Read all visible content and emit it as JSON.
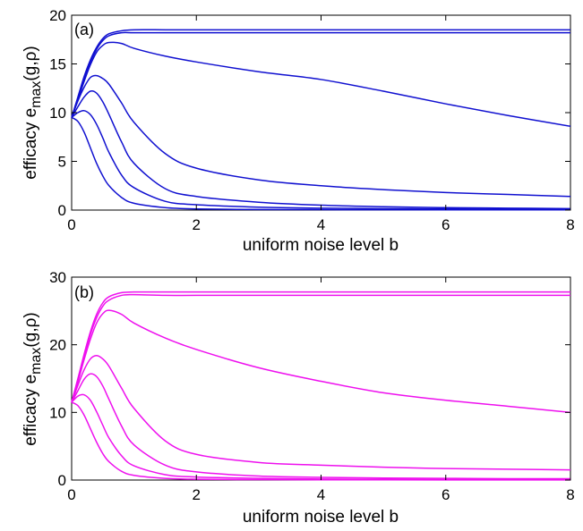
{
  "chart_data": [
    {
      "type": "line",
      "panel_label": "(a)",
      "xlabel": "uniform noise level b",
      "ylabel_main": "efficacy e",
      "ylabel_sub": "max",
      "ylabel_tail": "(g,ρ)",
      "xlim": [
        0,
        8
      ],
      "ylim": [
        0,
        20
      ],
      "xticks": [
        "0",
        "2",
        "4",
        "6",
        "8"
      ],
      "yticks": [
        "0",
        "5",
        "10",
        "15",
        "20"
      ],
      "color": "#1010d0",
      "series": [
        {
          "x": [
            0,
            0.1,
            0.2,
            0.3,
            0.4,
            0.5,
            0.6,
            0.8,
            1.0,
            1.5,
            2,
            3,
            4,
            5,
            6,
            7,
            8
          ],
          "y": [
            9.5,
            11.6,
            13.7,
            15.4,
            16.7,
            17.6,
            18.1,
            18.4,
            18.5,
            18.5,
            18.5,
            18.5,
            18.5,
            18.5,
            18.5,
            18.5,
            18.5
          ]
        },
        {
          "x": [
            0,
            0.1,
            0.2,
            0.3,
            0.4,
            0.5,
            0.6,
            0.8,
            1.0,
            1.5,
            2,
            3,
            4,
            5,
            6,
            7,
            8
          ],
          "y": [
            9.5,
            11.5,
            13.5,
            15.2,
            16.5,
            17.4,
            17.9,
            18.2,
            18.2,
            18.2,
            18.2,
            18.2,
            18.2,
            18.2,
            18.2,
            18.2,
            18.2
          ]
        },
        {
          "x": [
            0,
            0.1,
            0.2,
            0.3,
            0.4,
            0.5,
            0.6,
            0.8,
            1.0,
            1.5,
            2,
            3,
            4,
            5,
            6,
            7,
            8
          ],
          "y": [
            9.5,
            11.3,
            13.2,
            14.9,
            16.2,
            16.9,
            17.2,
            17.1,
            16.6,
            15.8,
            15.2,
            14.2,
            13.4,
            12.2,
            10.9,
            9.7,
            8.6
          ]
        },
        {
          "x": [
            0,
            0.1,
            0.2,
            0.3,
            0.4,
            0.5,
            0.6,
            0.8,
            1.0,
            1.5,
            2,
            3,
            4,
            5,
            6,
            7,
            8
          ],
          "y": [
            9.5,
            11.2,
            12.6,
            13.6,
            13.8,
            13.5,
            12.9,
            11.0,
            9.0,
            5.8,
            4.3,
            3.1,
            2.5,
            2.1,
            1.8,
            1.6,
            1.4
          ]
        },
        {
          "x": [
            0,
            0.1,
            0.2,
            0.3,
            0.4,
            0.5,
            0.6,
            0.8,
            1.0,
            1.5,
            2,
            3,
            4,
            5,
            6,
            7,
            8
          ],
          "y": [
            9.5,
            10.6,
            11.6,
            12.2,
            12.0,
            11.1,
            9.8,
            7.0,
            4.8,
            2.2,
            1.4,
            0.8,
            0.5,
            0.35,
            0.25,
            0.2,
            0.15
          ]
        },
        {
          "x": [
            0,
            0.1,
            0.2,
            0.3,
            0.4,
            0.5,
            0.6,
            0.8,
            1.0,
            1.5,
            2,
            3,
            4,
            5,
            6,
            7,
            8
          ],
          "y": [
            9.5,
            10.0,
            10.2,
            9.8,
            8.8,
            7.4,
            5.9,
            3.6,
            2.3,
            0.9,
            0.55,
            0.3,
            0.2,
            0.15,
            0.12,
            0.1,
            0.08
          ]
        },
        {
          "x": [
            0,
            0.1,
            0.2,
            0.3,
            0.4,
            0.5,
            0.6,
            0.8,
            1.0,
            1.5,
            2,
            3,
            4,
            5,
            6,
            7,
            8
          ],
          "y": [
            9.5,
            9.1,
            8.0,
            6.4,
            4.8,
            3.5,
            2.5,
            1.3,
            0.7,
            0.25,
            0.12,
            0.06,
            0.04,
            0.03,
            0.02,
            0.02,
            0.02
          ]
        }
      ]
    },
    {
      "type": "line",
      "panel_label": "(b)",
      "xlabel": "uniform noise level b",
      "ylabel_main": "efficacy e",
      "ylabel_sub": "max",
      "ylabel_tail": "(g,ρ)",
      "xlim": [
        0,
        8
      ],
      "ylim": [
        0,
        30
      ],
      "xticks": [
        "0",
        "2",
        "4",
        "6",
        "8"
      ],
      "yticks": [
        "0",
        "10",
        "20",
        "30"
      ],
      "color": "#ee10ee",
      "series": [
        {
          "x": [
            0,
            0.1,
            0.2,
            0.3,
            0.4,
            0.5,
            0.6,
            0.8,
            1.0,
            1.5,
            2,
            3,
            4,
            5,
            6,
            7,
            8
          ],
          "y": [
            11.5,
            15.0,
            18.6,
            21.9,
            24.5,
            26.2,
            27.1,
            27.7,
            27.8,
            27.8,
            27.8,
            27.8,
            27.8,
            27.8,
            27.8,
            27.8,
            27.8
          ]
        },
        {
          "x": [
            0,
            0.1,
            0.2,
            0.3,
            0.4,
            0.5,
            0.6,
            0.8,
            1.0,
            1.5,
            2,
            3,
            4,
            5,
            6,
            7,
            8
          ],
          "y": [
            11.5,
            14.8,
            18.2,
            21.5,
            24.0,
            25.7,
            26.6,
            27.3,
            27.4,
            27.3,
            27.3,
            27.3,
            27.3,
            27.3,
            27.3,
            27.3,
            27.3
          ]
        },
        {
          "x": [
            0,
            0.1,
            0.2,
            0.3,
            0.4,
            0.5,
            0.6,
            0.8,
            1.0,
            1.5,
            2,
            3,
            4,
            5,
            6,
            7,
            8
          ],
          "y": [
            11.5,
            14.5,
            17.8,
            20.8,
            23.2,
            24.6,
            25.1,
            24.5,
            23.2,
            21.0,
            19.3,
            16.6,
            14.6,
            12.9,
            11.8,
            10.9,
            10.0
          ]
        },
        {
          "x": [
            0,
            0.1,
            0.2,
            0.3,
            0.4,
            0.5,
            0.6,
            0.8,
            1.0,
            1.5,
            2,
            3,
            4,
            5,
            6,
            7,
            8
          ],
          "y": [
            11.5,
            14.0,
            16.3,
            17.9,
            18.4,
            17.9,
            16.8,
            13.6,
            10.6,
            5.8,
            3.8,
            2.6,
            2.2,
            1.9,
            1.7,
            1.6,
            1.5
          ]
        },
        {
          "x": [
            0,
            0.1,
            0.2,
            0.3,
            0.4,
            0.5,
            0.6,
            0.8,
            1.0,
            1.5,
            2,
            3,
            4,
            5,
            6,
            7,
            8
          ],
          "y": [
            11.5,
            13.2,
            14.9,
            15.7,
            15.3,
            13.9,
            11.9,
            8.0,
            5.2,
            2.2,
            1.2,
            0.6,
            0.4,
            0.3,
            0.25,
            0.2,
            0.2
          ]
        },
        {
          "x": [
            0,
            0.1,
            0.2,
            0.3,
            0.4,
            0.5,
            0.6,
            0.8,
            1.0,
            1.5,
            2,
            3,
            4,
            5,
            6,
            7,
            8
          ],
          "y": [
            11.5,
            12.4,
            12.6,
            11.8,
            10.1,
            8.1,
            6.2,
            3.6,
            2.1,
            0.8,
            0.45,
            0.25,
            0.15,
            0.1,
            0.08,
            0.07,
            0.06
          ]
        },
        {
          "x": [
            0,
            0.1,
            0.2,
            0.3,
            0.4,
            0.5,
            0.6,
            0.8,
            1.0,
            1.5,
            2,
            3,
            4,
            5,
            6,
            7,
            8
          ],
          "y": [
            11.5,
            11.0,
            9.6,
            7.6,
            5.6,
            3.9,
            2.7,
            1.3,
            0.7,
            0.25,
            0.12,
            0.06,
            0.04,
            0.03,
            0.02,
            0.02,
            0.02
          ]
        }
      ]
    }
  ]
}
